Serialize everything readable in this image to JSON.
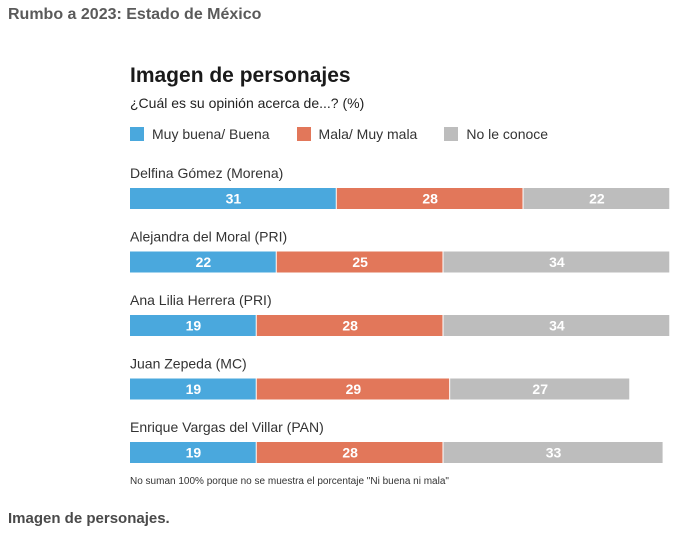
{
  "header": {
    "text": "Rumbo a 2023: Estado de México"
  },
  "caption": {
    "text": "Imagen de personajes."
  },
  "note": "No suman 100% porque no se muestra el porcentaje \"Ni buena ni mala\"",
  "colors": {
    "positive": "#4aa8dd",
    "negative": "#e2775a",
    "unknown": "#bdbdbd"
  },
  "chart_data": {
    "type": "bar",
    "orientation": "horizontal",
    "stacked": true,
    "title": "Imagen de personajes",
    "subtitle": "¿Cuál es su opinión acerca de...? (%)",
    "categories": [
      "Delfina Gómez (Morena)",
      "Alejandra del Moral (PRI)",
      "Ana Lilia Herrera (PRI)",
      "Juan Zepeda (MC)",
      "Enrique Vargas del Villar (PAN)"
    ],
    "series": [
      {
        "name": "Muy buena/ Buena",
        "color": "#4aa8dd",
        "values": [
          31,
          22,
          19,
          19,
          19
        ]
      },
      {
        "name": "Mala/ Muy mala",
        "color": "#e2775a",
        "values": [
          28,
          25,
          28,
          29,
          28
        ]
      },
      {
        "name": "No le conoce",
        "color": "#bdbdbd",
        "values": [
          22,
          34,
          34,
          27,
          33
        ]
      }
    ],
    "legend_position": "top",
    "grid": false
  }
}
